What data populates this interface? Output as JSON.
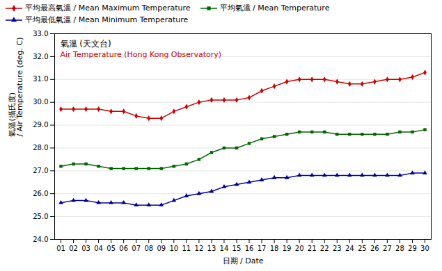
{
  "chart_data": {
    "type": "line",
    "xlabel": "日期 / Date",
    "ylabel": "氣溫(攝氏度)\n/ Air Temperature (deg. C)",
    "x": [
      1,
      2,
      3,
      4,
      5,
      6,
      7,
      8,
      9,
      10,
      11,
      12,
      13,
      14,
      15,
      16,
      17,
      18,
      19,
      20,
      21,
      22,
      23,
      24,
      25,
      26,
      27,
      28,
      29,
      30
    ],
    "series": [
      {
        "name": "平均最高氣溫 / Mean Maximum Temperature",
        "color": "#cc0000",
        "marker": "diamond",
        "values": [
          29.7,
          29.7,
          29.7,
          29.7,
          29.6,
          29.6,
          29.4,
          29.3,
          29.3,
          29.6,
          29.8,
          30.0,
          30.1,
          30.1,
          30.1,
          30.2,
          30.5,
          30.7,
          30.9,
          31.0,
          31.0,
          31.0,
          30.9,
          30.8,
          30.8,
          30.9,
          31.0,
          31.0,
          31.1,
          31.3
        ]
      },
      {
        "name": "平均氣溫 / Mean Temperature",
        "color": "#006600",
        "marker": "square",
        "values": [
          27.2,
          27.3,
          27.3,
          27.2,
          27.1,
          27.1,
          27.1,
          27.1,
          27.1,
          27.2,
          27.3,
          27.5,
          27.8,
          28.0,
          28.0,
          28.2,
          28.4,
          28.5,
          28.6,
          28.7,
          28.7,
          28.7,
          28.6,
          28.6,
          28.6,
          28.6,
          28.6,
          28.7,
          28.7,
          28.8
        ]
      },
      {
        "name": "平均最低氣溫 / Mean Minimum Temperature",
        "color": "#000099",
        "marker": "triangle",
        "values": [
          25.6,
          25.7,
          25.7,
          25.6,
          25.6,
          25.6,
          25.5,
          25.5,
          25.5,
          25.7,
          25.9,
          26.0,
          26.1,
          26.3,
          26.4,
          26.5,
          26.6,
          26.7,
          26.7,
          26.8,
          26.8,
          26.8,
          26.8,
          26.8,
          26.8,
          26.8,
          26.8,
          26.8,
          26.9,
          26.9
        ]
      }
    ],
    "xlim": [
      0.5,
      30.5
    ],
    "xticks": [
      {
        "value": 1,
        "label": "01"
      },
      {
        "value": 2,
        "label": "02"
      },
      {
        "value": 3,
        "label": "03"
      },
      {
        "value": 4,
        "label": "04"
      },
      {
        "value": 5,
        "label": "05"
      },
      {
        "value": 6,
        "label": "06"
      },
      {
        "value": 7,
        "label": "07"
      },
      {
        "value": 8,
        "label": "08"
      },
      {
        "value": 9,
        "label": "09"
      },
      {
        "value": 10,
        "label": "10"
      },
      {
        "value": 11,
        "label": "11"
      },
      {
        "value": 12,
        "label": "12"
      },
      {
        "value": 13,
        "label": "13"
      },
      {
        "value": 14,
        "label": "14"
      },
      {
        "value": 15,
        "label": "15"
      },
      {
        "value": 16,
        "label": "16"
      },
      {
        "value": 17,
        "label": "17"
      },
      {
        "value": 18,
        "label": "18"
      },
      {
        "value": 19,
        "label": "19"
      },
      {
        "value": 20,
        "label": "20"
      },
      {
        "value": 21,
        "label": "21"
      },
      {
        "value": 22,
        "label": "22"
      },
      {
        "value": 23,
        "label": "23"
      },
      {
        "value": 24,
        "label": "24"
      },
      {
        "value": 25,
        "label": "25"
      },
      {
        "value": 26,
        "label": "26"
      },
      {
        "value": 27,
        "label": "27"
      },
      {
        "value": 28,
        "label": "28"
      },
      {
        "value": 29,
        "label": "29"
      },
      {
        "value": 30,
        "label": "30"
      }
    ],
    "ylim": [
      24.0,
      33.0
    ],
    "yticks": [
      {
        "value": 24,
        "label": "24.0"
      },
      {
        "value": 25,
        "label": "25.0"
      },
      {
        "value": 26,
        "label": "26.0"
      },
      {
        "value": 27,
        "label": "27.0"
      },
      {
        "value": 28,
        "label": "28.0"
      },
      {
        "value": 29,
        "label": "29.0"
      },
      {
        "value": 30,
        "label": "30.0"
      },
      {
        "value": 31,
        "label": "31.0"
      },
      {
        "value": 32,
        "label": "32.0"
      },
      {
        "value": 33,
        "label": "33.0"
      }
    ],
    "grid": "y",
    "legend": "upper left",
    "annotations": [
      {
        "text": "氣溫 (天文台)",
        "color": "#000000"
      },
      {
        "text": "Air Temperature (Hong Kong Observatory)",
        "color": "#cc0000"
      }
    ]
  }
}
